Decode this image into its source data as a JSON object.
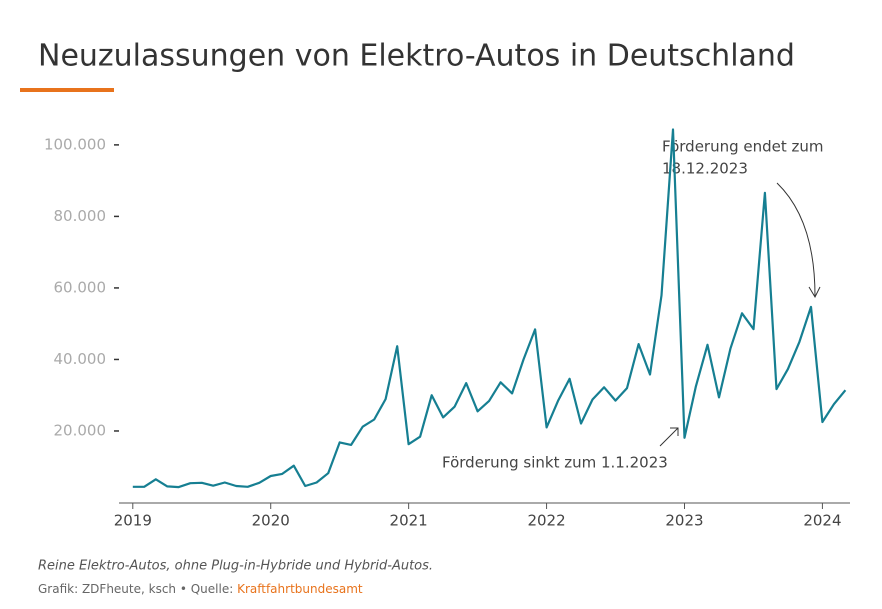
{
  "chart_data": {
    "type": "line",
    "title": "Neuzulassungen von Elektro-Autos in Deutschland",
    "footnote": "Reine Elektro-Autos, ohne Plug-in-Hybride und Hybrid-Autos.",
    "source": "Grafik: ZDFheute, ksch • Quelle: ",
    "source_link": "Kraftfahrtbundesamt",
    "annotations": [
      {
        "lines": [
          "Förderung endet zum",
          "18.12.2023"
        ]
      },
      {
        "lines": [
          "Förderung sinkt zum 1.1.2023"
        ]
      }
    ],
    "x": [
      2019,
      2019.083,
      2019.167,
      2019.25,
      2019.333,
      2019.417,
      2019.5,
      2019.583,
      2019.667,
      2019.75,
      2019.833,
      2019.917,
      2020,
      2020.083,
      2020.167,
      2020.25,
      2020.333,
      2020.417,
      2020.5,
      2020.583,
      2020.667,
      2020.75,
      2020.833,
      2020.917,
      2021,
      2021.083,
      2021.167,
      2021.25,
      2021.333,
      2021.417,
      2021.5,
      2021.583,
      2021.667,
      2021.75,
      2021.833,
      2021.917,
      2022,
      2022.083,
      2022.167,
      2022.25,
      2022.333,
      2022.417,
      2022.5,
      2022.583,
      2022.667,
      2022.75,
      2022.833,
      2022.917,
      2023,
      2023.083,
      2023.167,
      2023.25,
      2023.333,
      2023.417,
      2023.5,
      2023.583,
      2023.667,
      2023.75,
      2023.833,
      2023.917,
      2024,
      2024.083,
      2024.167
    ],
    "series": [
      {
        "name": "Neuzulassungen",
        "color": "#167f92",
        "values": [
          4400,
          4400,
          6500,
          4500,
          4300,
          5400,
          5500,
          4700,
          5600,
          4600,
          4400,
          5500,
          7400,
          8000,
          10300,
          4600,
          5600,
          8200,
          16800,
          16100,
          21200,
          23200,
          28900,
          43700,
          16300,
          18400,
          30000,
          23800,
          26800,
          33400,
          25500,
          28400,
          33600,
          30500,
          40000,
          48400,
          21000,
          28400,
          34600,
          22100,
          28800,
          32200,
          28500,
          32000,
          44300,
          35800,
          57900,
          104300,
          18100,
          32500,
          44100,
          29400,
          43000,
          52900,
          48500,
          86600,
          31700,
          37300,
          44900,
          54700,
          22500,
          27500,
          31400
        ]
      }
    ],
    "xlim": [
      2018.9,
      2024.2
    ],
    "xticks": [
      2019,
      2020,
      2021,
      2022,
      2023,
      2024
    ],
    "ylim": [
      0,
      105000
    ],
    "yticks": [
      {
        "value": 20000,
        "label": "20.000"
      },
      {
        "value": 40000,
        "label": "40.000"
      },
      {
        "value": 60000,
        "label": "60.000"
      },
      {
        "value": 80000,
        "label": "80.000"
      },
      {
        "value": 100000,
        "label": "100.000"
      }
    ]
  }
}
